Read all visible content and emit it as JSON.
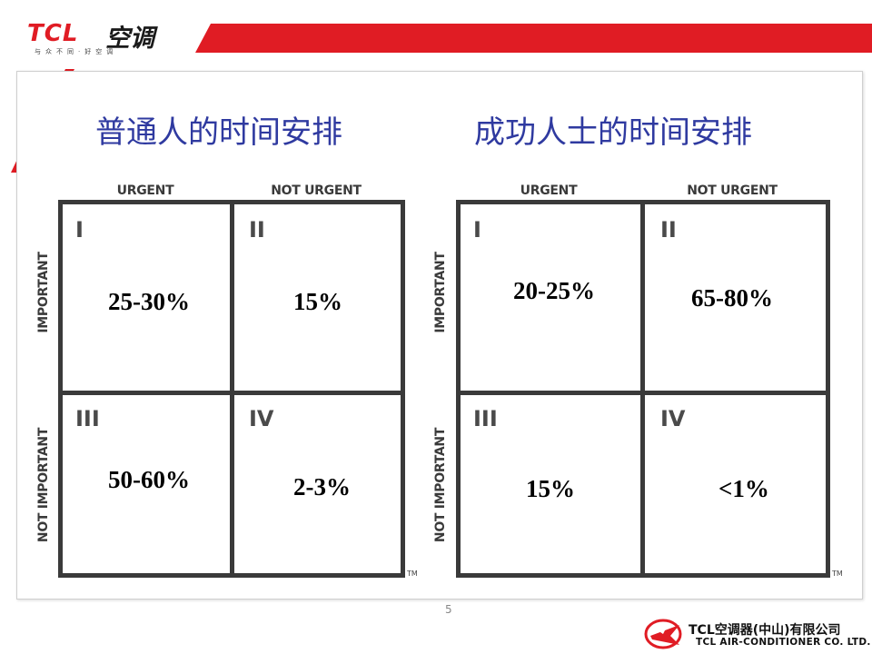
{
  "header": {
    "logo_brand": "TCL",
    "logo_product": "空调",
    "logo_tagline": "与众不同·好空调"
  },
  "left_matrix": {
    "title": "普通人的时间安排",
    "col_labels": [
      "URGENT",
      "NOT URGENT"
    ],
    "row_labels": [
      "IMPORTANT",
      "NOT IMPORTANT"
    ],
    "quadrants": [
      {
        "num": "I",
        "value": "25-30%"
      },
      {
        "num": "II",
        "value": "15%"
      },
      {
        "num": "III",
        "value": "50-60%"
      },
      {
        "num": "IV",
        "value": "2-3%"
      }
    ],
    "tm": "TM"
  },
  "right_matrix": {
    "title": "成功人士的时间安排",
    "col_labels": [
      "URGENT",
      "NOT URGENT"
    ],
    "row_labels": [
      "IMPORTANT",
      "NOT IMPORTANT"
    ],
    "quadrants": [
      {
        "num": "I",
        "value": "20-25%"
      },
      {
        "num": "II",
        "value": "65-80%"
      },
      {
        "num": "III",
        "value": "15%"
      },
      {
        "num": "IV",
        "value": "<1%"
      }
    ],
    "tm": "TM"
  },
  "page_number": "5",
  "footer": {
    "company_cn": "TCL空调器(中山)有限公司",
    "company_en": "TCL AIR-CONDITIONER CO. LTD."
  },
  "colors": {
    "brand_red": "#e01c24",
    "title_blue": "#2f3aa0",
    "grid_gray": "#3a3a3a"
  }
}
